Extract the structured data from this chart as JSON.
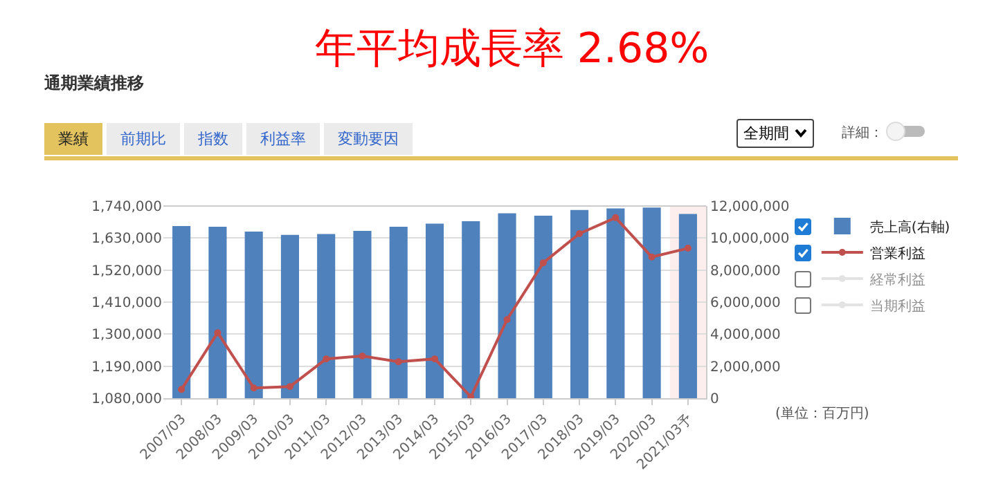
{
  "chart_data": {
    "type": "bar",
    "title": "年平均成長率 2.68%",
    "subtitle": "通期業績推移",
    "annotations": [
      "業績",
      "前期比",
      "指数",
      "利益率",
      "変動要因",
      "全期間",
      "詳細：",
      "(単位：百万円)"
    ],
    "categories": [
      "2007/03",
      "2008/03",
      "2009/03",
      "2010/03",
      "2011/03",
      "2012/03",
      "2013/03",
      "2014/03",
      "2015/03",
      "2016/03",
      "2017/03",
      "2018/03",
      "2019/03",
      "2020/03",
      "2021/03予"
    ],
    "series": [
      {
        "name": "売上高(右軸)",
        "axis": "y2",
        "color": "#4f81bd",
        "values": [
          10750000,
          10700000,
          10400000,
          10200000,
          10250000,
          10450000,
          10700000,
          10900000,
          11050000,
          11550000,
          11400000,
          11750000,
          11850000,
          11900000,
          11500000
        ]
      },
      {
        "name": "営業利益",
        "type": "line",
        "color": "#c0504d",
        "values": [
          1110000,
          1305000,
          1115000,
          1120000,
          1215000,
          1225000,
          1205000,
          1215000,
          1085000,
          1350000,
          1545000,
          1645000,
          1700000,
          1565000,
          1595000
        ]
      },
      {
        "name": "経常利益",
        "type": "line",
        "color": "#c8c8c8",
        "values": [
          null,
          null,
          null,
          null,
          null,
          null,
          null,
          null,
          null,
          null,
          null,
          null,
          null,
          null,
          null
        ]
      },
      {
        "name": "当期利益",
        "type": "line",
        "color": "#c8c8c8",
        "values": [
          null,
          null,
          null,
          null,
          null,
          null,
          null,
          null,
          null,
          null,
          null,
          null,
          null,
          null,
          null
        ]
      }
    ],
    "ylim": [
      1080000,
      1740000
    ],
    "yticks": [
      {
        "value": 1080000,
        "label": "1,080,000"
      },
      {
        "value": 1190000,
        "label": "1,190,000"
      },
      {
        "value": 1300000,
        "label": "1,300,000"
      },
      {
        "value": 1410000,
        "label": "1,410,000"
      },
      {
        "value": 1520000,
        "label": "1,520,000"
      },
      {
        "value": 1630000,
        "label": "1,630,000"
      },
      {
        "value": 1740000,
        "label": "1,740,000"
      }
    ],
    "y2lim": [
      0,
      12000000
    ],
    "y2ticks": [
      0,
      {
        "value": 2000000,
        "label": "2,000,000"
      },
      {
        "value": 4000000,
        "label": "4,000,000"
      },
      {
        "value": 6000000,
        "label": "6,000,000"
      },
      {
        "value": 8000000,
        "label": "8,000,000"
      },
      {
        "value": 10000000,
        "label": "10,000,000"
      },
      {
        "value": 12000000,
        "label": "12,000,000"
      }
    ],
    "bands": [
      {
        "axis": "x",
        "from": "2021/03予",
        "to": "2021/03予",
        "color": "#fdeeee"
      }
    ],
    "grid": "y",
    "legend": "right",
    "marker": "circle",
    "line_style": "solid"
  }
}
